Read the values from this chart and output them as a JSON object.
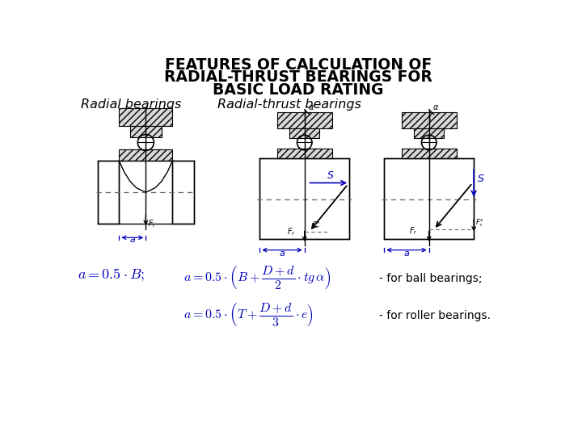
{
  "title_line1": "FEATURES OF CALCULATION OF",
  "title_line2": "RADIAL-THRUST BEARINGS FOR",
  "title_line3": "BASIC LOAD RATING",
  "subtitle_left": "Radial bearings",
  "subtitle_right": "Radial-thrust bearings",
  "formula2_label": "- for ball bearings;",
  "formula3_label": "- for roller bearings.",
  "bg_color": "#ffffff",
  "title_color": "#000000",
  "subtitle_color": "#000000",
  "formula_color": "#0000bb",
  "drawing_color": "#000000",
  "blue_color": "#0000bb",
  "hatch_color": "#000000"
}
